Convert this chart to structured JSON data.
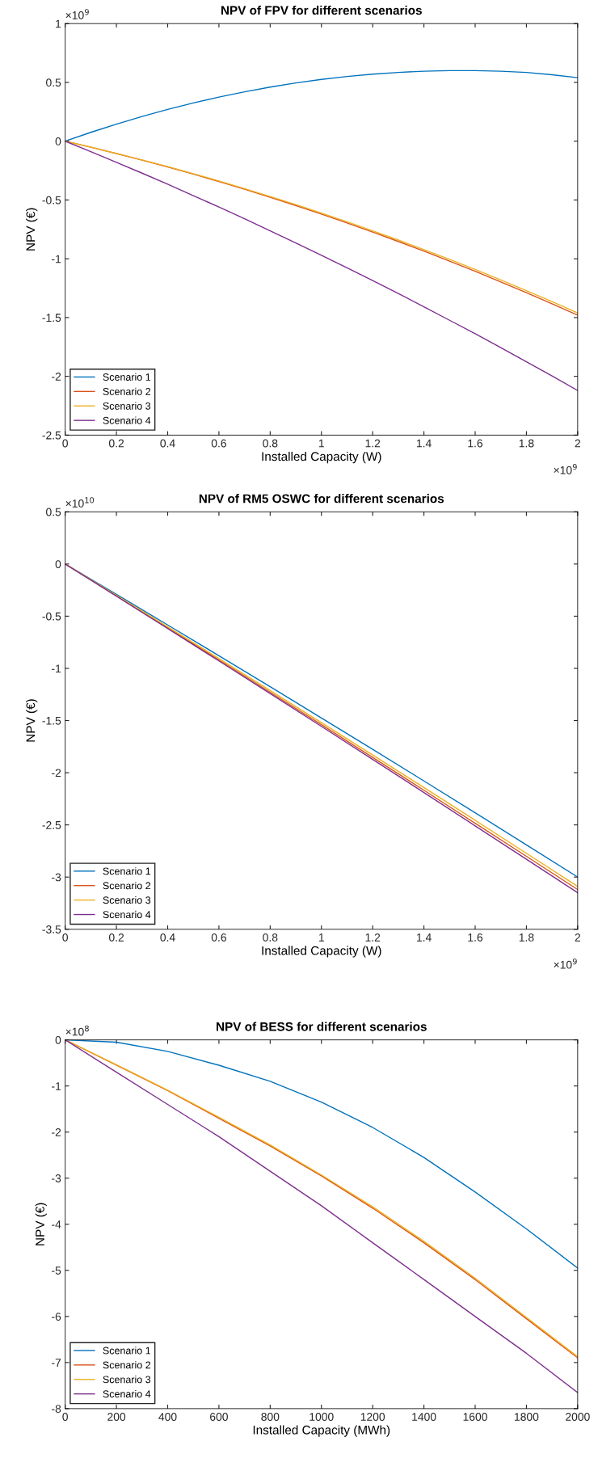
{
  "chart_data": [
    {
      "type": "line",
      "title": "NPV of FPV for different scenarios",
      "xlabel": "Installed Capacity (W)",
      "ylabel": "NPV (€)",
      "annotations": [
        "×10$^{9}$",
        "×10$^{9}$"
      ],
      "x": [
        0,
        0.1,
        0.2,
        0.3,
        0.4,
        0.5,
        0.6,
        0.7,
        0.8,
        0.9,
        1.0,
        1.1,
        1.2,
        1.3,
        1.4,
        1.5,
        1.6,
        1.7,
        1.8,
        1.9,
        2.0
      ],
      "series": [
        {
          "name": "Scenario 1",
          "color": "#0072bd",
          "values": [
            0,
            0.075,
            0.145,
            0.21,
            0.27,
            0.325,
            0.375,
            0.42,
            0.46,
            0.495,
            0.525,
            0.55,
            0.57,
            0.585,
            0.595,
            0.6,
            0.6,
            0.595,
            0.585,
            0.565,
            0.54
          ]
        },
        {
          "name": "Scenario 2",
          "color": "#d95319",
          "values": [
            0,
            -0.051,
            -0.105,
            -0.161,
            -0.219,
            -0.28,
            -0.343,
            -0.409,
            -0.477,
            -0.547,
            -0.62,
            -0.695,
            -0.773,
            -0.853,
            -0.935,
            -1.02,
            -1.107,
            -1.197,
            -1.289,
            -1.383,
            -1.48
          ]
        },
        {
          "name": "Scenario 3",
          "color": "#edb120",
          "values": [
            0,
            -0.05,
            -0.104,
            -0.159,
            -0.216,
            -0.276,
            -0.338,
            -0.403,
            -0.47,
            -0.539,
            -0.611,
            -0.685,
            -0.762,
            -0.841,
            -0.922,
            -1.005,
            -1.091,
            -1.18,
            -1.271,
            -1.364,
            -1.46
          ]
        },
        {
          "name": "Scenario 4",
          "color": "#7e2f8e",
          "values": [
            0,
            -0.089,
            -0.18,
            -0.272,
            -0.366,
            -0.463,
            -0.56,
            -0.66,
            -0.762,
            -0.865,
            -0.97,
            -1.077,
            -1.186,
            -1.296,
            -1.408,
            -1.523,
            -1.638,
            -1.756,
            -1.876,
            -1.997,
            -2.12
          ]
        }
      ],
      "xlim": [
        0,
        2
      ],
      "xticks": [
        0,
        0.2,
        0.4,
        0.6,
        0.8,
        1,
        1.2,
        1.4,
        1.6,
        1.8,
        2
      ],
      "ylim": [
        -2.5,
        1
      ],
      "yticks": [
        -2.5,
        -2,
        -1.5,
        -1,
        -0.5,
        0,
        0.5,
        1
      ],
      "legend": "bottom left",
      "grid": false
    },
    {
      "type": "line",
      "title": "NPV of RM5 OSWC for different scenarios",
      "xlabel": "Installed Capacity (W)",
      "ylabel": "NPV (€)",
      "annotations": [
        "×10$^{10}$",
        "×10$^{9}$"
      ],
      "x": [
        0,
        0.2,
        0.4,
        0.6,
        0.8,
        1.0,
        1.2,
        1.4,
        1.6,
        1.8,
        2.0
      ],
      "series": [
        {
          "name": "Scenario 1",
          "color": "#0072bd",
          "values": [
            0,
            -0.291,
            -0.584,
            -0.879,
            -1.176,
            -1.475,
            -1.776,
            -2.079,
            -2.384,
            -2.691,
            -3.0
          ]
        },
        {
          "name": "Scenario 2",
          "color": "#d95319",
          "values": [
            0,
            -0.305,
            -0.611,
            -0.919,
            -1.229,
            -1.54,
            -1.853,
            -2.168,
            -2.485,
            -2.801,
            -3.12
          ]
        },
        {
          "name": "Scenario 3",
          "color": "#edb120",
          "values": [
            0,
            -0.3,
            -0.602,
            -0.906,
            -1.212,
            -1.52,
            -1.83,
            -2.142,
            -2.456,
            -2.772,
            -3.09
          ]
        },
        {
          "name": "Scenario 4",
          "color": "#7e2f8e",
          "values": [
            0,
            -0.308,
            -0.618,
            -0.929,
            -1.242,
            -1.556,
            -1.872,
            -2.19,
            -2.509,
            -2.829,
            -3.15
          ]
        }
      ],
      "xlim": [
        0,
        2
      ],
      "xticks": [
        0,
        0.2,
        0.4,
        0.6,
        0.8,
        1,
        1.2,
        1.4,
        1.6,
        1.8,
        2
      ],
      "ylim": [
        -3.5,
        0.5
      ],
      "yticks": [
        -3.5,
        -3,
        -2.5,
        -2,
        -1.5,
        -1,
        -0.5,
        0,
        0.5
      ],
      "legend": "bottom left",
      "grid": false
    },
    {
      "type": "line",
      "title": "NPV of BESS for different scenarios",
      "xlabel": "Installed Capacity (MWh)",
      "ylabel": "NPV (€)",
      "annotations": [
        "×10$^{8}$"
      ],
      "x": [
        0,
        200,
        400,
        600,
        800,
        1000,
        1200,
        1400,
        1600,
        1800,
        2000
      ],
      "series": [
        {
          "name": "Scenario 1",
          "color": "#0072bd",
          "values": [
            0,
            -0.05,
            -0.25,
            -0.55,
            -0.9,
            -1.35,
            -1.9,
            -2.55,
            -3.3,
            -4.1,
            -4.95
          ]
        },
        {
          "name": "Scenario 2",
          "color": "#d95319",
          "values": [
            0,
            -0.55,
            -1.1,
            -1.7,
            -2.3,
            -2.95,
            -3.65,
            -4.4,
            -5.2,
            -6.05,
            -6.9
          ]
        },
        {
          "name": "Scenario 3",
          "color": "#edb120",
          "values": [
            0,
            -0.54,
            -1.09,
            -1.68,
            -2.28,
            -2.93,
            -3.62,
            -4.37,
            -5.17,
            -6.02,
            -6.87
          ]
        },
        {
          "name": "Scenario 4",
          "color": "#7e2f8e",
          "values": [
            0,
            -0.7,
            -1.4,
            -2.1,
            -2.85,
            -3.6,
            -4.4,
            -5.2,
            -6.0,
            -6.8,
            -7.65
          ]
        }
      ],
      "xlim": [
        0,
        2000
      ],
      "xticks": [
        0,
        200,
        400,
        600,
        800,
        1000,
        1200,
        1400,
        1600,
        1800,
        2000
      ],
      "ylim": [
        -8,
        0
      ],
      "yticks": [
        -8,
        -7,
        -6,
        -5,
        -4,
        -3,
        -2,
        -1,
        0
      ],
      "legend": "bottom left",
      "grid": false
    }
  ]
}
